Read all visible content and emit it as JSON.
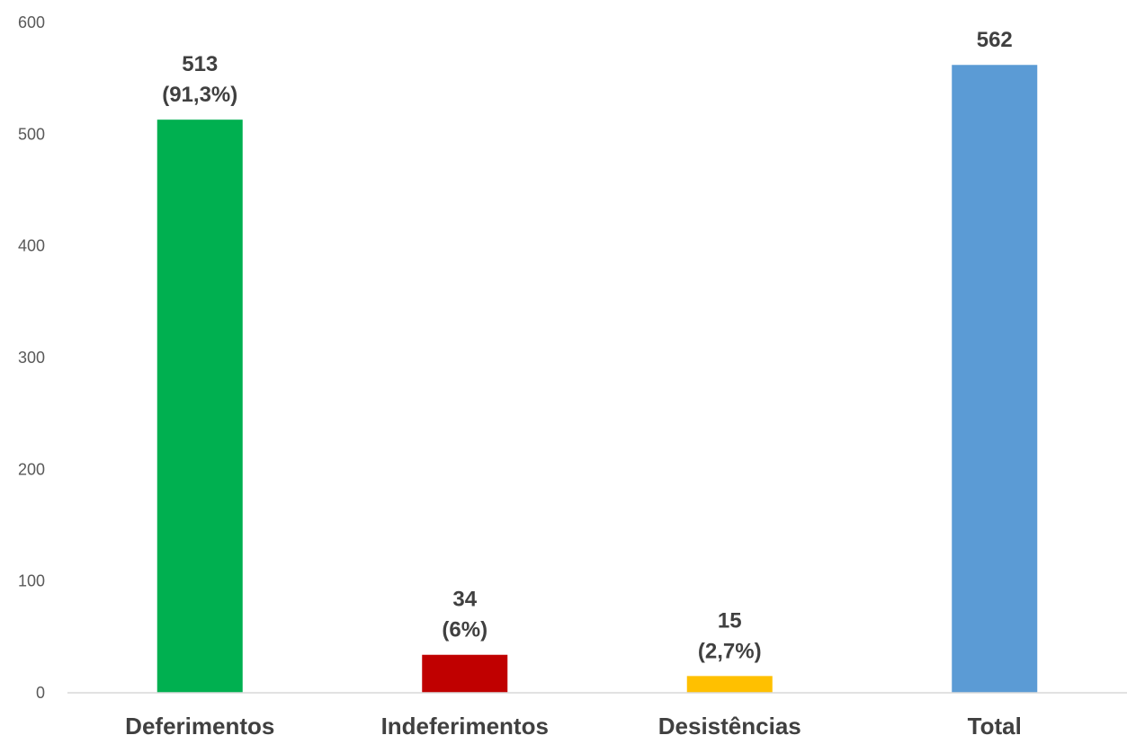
{
  "chart_data": {
    "type": "bar",
    "title": "",
    "xlabel": "",
    "ylabel": "",
    "ylim": [
      0,
      600
    ],
    "yticks": [
      0,
      100,
      200,
      300,
      400,
      500,
      600
    ],
    "grid": false,
    "legend": "none",
    "categories": [
      "Deferimentos",
      "Indeferimentos",
      "Desistências",
      "Total"
    ],
    "values": [
      513,
      34,
      15,
      562
    ],
    "data_labels": [
      [
        "513",
        "(91,3%)"
      ],
      [
        "34",
        "(6%)"
      ],
      [
        "15",
        "(2,7%)"
      ],
      [
        "562"
      ]
    ],
    "colors": [
      "#00B050",
      "#C00000",
      "#FFC000",
      "#5B9BD5"
    ]
  }
}
